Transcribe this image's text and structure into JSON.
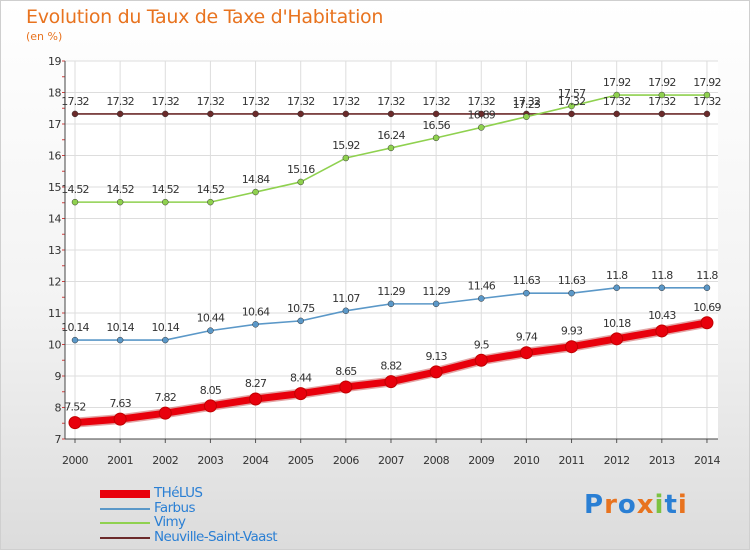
{
  "header": {
    "title": "Evolution du Taux de Taxe d'Habitation",
    "subtitle": "(en %)"
  },
  "logo": {
    "text": "Proxiti",
    "letters": [
      "P",
      "r",
      "o",
      "x",
      "i",
      "t",
      "i"
    ],
    "colors": [
      "#2a7fd4",
      "#e8731f",
      "#2a7fd4",
      "#e8731f",
      "#7cc242",
      "#2a7fd4",
      "#e8731f"
    ]
  },
  "chart_data": {
    "type": "line",
    "title": "Evolution du Taux de Taxe d'Habitation",
    "ylabel": "(en %)",
    "xlabel": "",
    "x": [
      "2000",
      "2001",
      "2002",
      "2003",
      "2004",
      "2005",
      "2006",
      "2007",
      "2008",
      "2009",
      "2010",
      "2011",
      "2012",
      "2013",
      "2014"
    ],
    "ylim": [
      7,
      19
    ],
    "yticks": [
      7,
      8,
      9,
      10,
      11,
      12,
      13,
      14,
      15,
      16,
      17,
      18,
      19
    ],
    "grid": true,
    "legend_position": "bottom-left",
    "series": [
      {
        "name": "THéLUS",
        "color": "#e8000c",
        "values": [
          7.52,
          7.63,
          7.82,
          8.05,
          8.27,
          8.44,
          8.65,
          8.82,
          9.13,
          9.5,
          9.74,
          9.93,
          10.18,
          10.43,
          10.69
        ],
        "labels": [
          "7.52",
          "7.63",
          "7.82",
          "8.05",
          "8.27",
          "8.44",
          "8.65",
          "8.82",
          "9.13",
          "9.5",
          "9.74",
          "9.93",
          "10.18",
          "10.43",
          "10.69"
        ]
      },
      {
        "name": "Farbus",
        "color": "#5b98c8",
        "values": [
          10.14,
          10.14,
          10.14,
          10.44,
          10.64,
          10.75,
          11.07,
          11.29,
          11.29,
          11.46,
          11.63,
          11.63,
          11.8,
          11.8,
          11.8
        ],
        "labels": [
          "10.14",
          "10.14",
          "10.14",
          "10.44",
          "10.64",
          "10.75",
          "11.07",
          "11.29",
          "11.29",
          "11.46",
          "11.63",
          "11.63",
          "11.8",
          "11.8",
          "11.8"
        ]
      },
      {
        "name": "Vimy",
        "color": "#8fd14f",
        "values": [
          14.52,
          14.52,
          14.52,
          14.52,
          14.84,
          15.16,
          15.92,
          16.24,
          16.56,
          16.89,
          17.23,
          17.57,
          17.92,
          17.92,
          17.92
        ],
        "labels": [
          "14.52",
          "14.52",
          "14.52",
          "14.52",
          "14.84",
          "15.16",
          "15.92",
          "16.24",
          "16.56",
          "16.89",
          "17.23",
          "17.57",
          "17.92",
          "17.92",
          "17.92"
        ]
      },
      {
        "name": "Neuville-Saint-Vaast",
        "color": "#6b2a2a",
        "values": [
          17.32,
          17.32,
          17.32,
          17.32,
          17.32,
          17.32,
          17.32,
          17.32,
          17.32,
          17.32,
          17.32,
          17.32,
          17.32,
          17.32,
          17.32
        ],
        "labels": [
          "17.32",
          "17.32",
          "17.32",
          "17.32",
          "17.32",
          "17.32",
          "17.32",
          "17.32",
          "17.32",
          "17.32",
          "17.32",
          "17.32",
          "17.32",
          "17.32",
          "17.32"
        ]
      }
    ]
  }
}
